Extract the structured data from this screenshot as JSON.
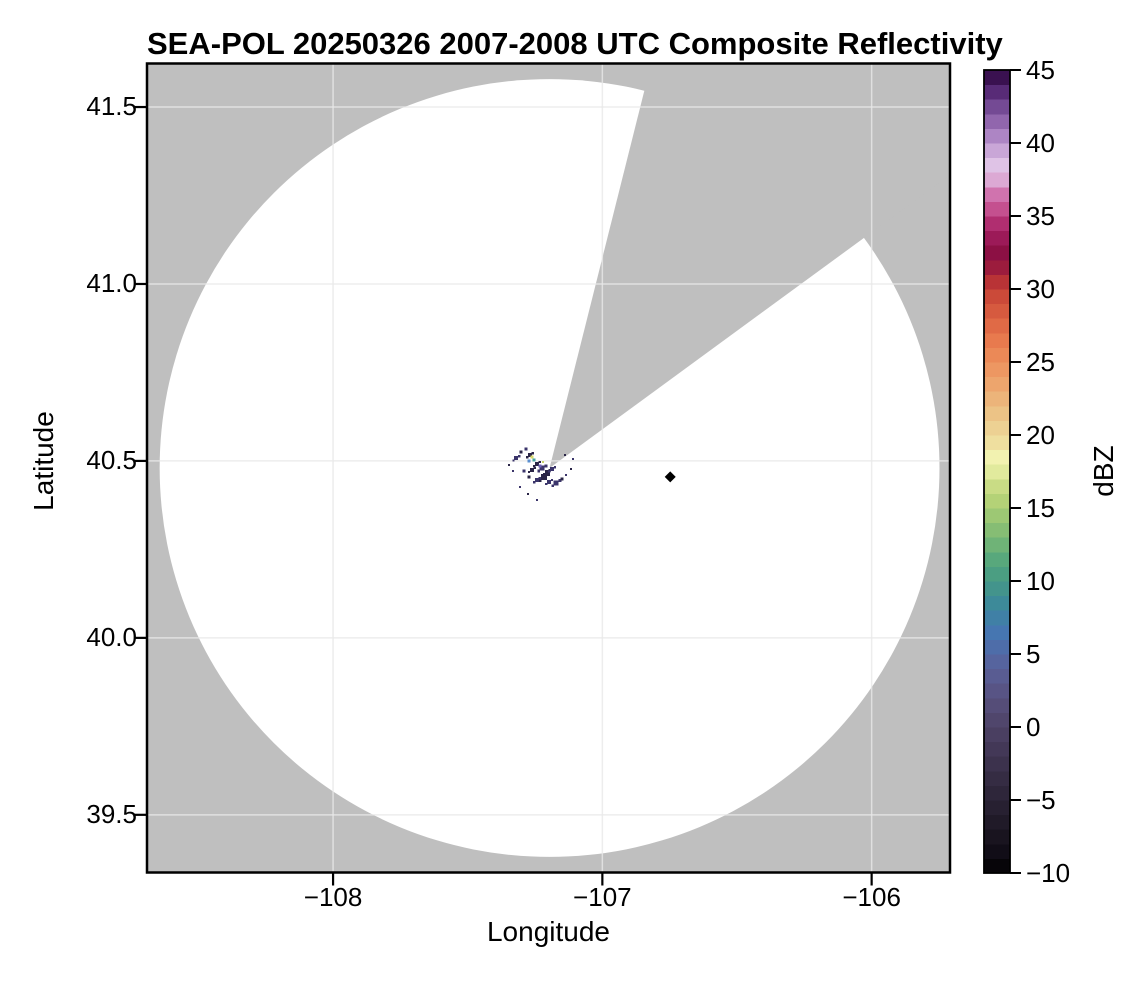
{
  "title": "SEA-POL 20250326 2007-2008 UTC Composite Reflectivity",
  "axes": {
    "xlabel": "Longitude",
    "ylabel": "Latitude",
    "xlim": [
      -108.691,
      -105.709
    ],
    "ylim": [
      39.337,
      41.623
    ],
    "xticks": [
      {
        "v": -108,
        "label": "−108"
      },
      {
        "v": -107,
        "label": "−107"
      },
      {
        "v": -106,
        "label": "−106"
      }
    ],
    "yticks": [
      {
        "v": 41.5,
        "label": "41.5"
      },
      {
        "v": 41.0,
        "label": "41.0"
      },
      {
        "v": 40.5,
        "label": "40.5"
      },
      {
        "v": 40.0,
        "label": "40.0"
      },
      {
        "v": 39.5,
        "label": "39.5"
      }
    ]
  },
  "colors": {
    "masked_gray": "#bfbfbf",
    "coverage_white": "#ffffff",
    "grid": "#e9e9e9",
    "frame": "#000000"
  },
  "colorbar": {
    "label": "dBZ",
    "vmin": -10,
    "vmax": 45,
    "step": 1,
    "ticks": [
      {
        "v": 45,
        "label": "45"
      },
      {
        "v": 40,
        "label": "40"
      },
      {
        "v": 35,
        "label": "35"
      },
      {
        "v": 30,
        "label": "30"
      },
      {
        "v": 25,
        "label": "25"
      },
      {
        "v": 20,
        "label": "20"
      },
      {
        "v": 15,
        "label": "15"
      },
      {
        "v": 10,
        "label": "10"
      },
      {
        "v": 5,
        "label": "5"
      },
      {
        "v": 0,
        "label": "0"
      },
      {
        "v": -5,
        "label": "−5"
      },
      {
        "v": -10,
        "label": "−10"
      }
    ],
    "band_colors": [
      "#070509",
      "#110d17",
      "#19141f",
      "#201a28",
      "#272031",
      "#2e263a",
      "#352c43",
      "#3c324d",
      "#433857",
      "#4a3f61",
      "#50466c",
      "#554d78",
      "#585485",
      "#595c92",
      "#56649e",
      "#4e6da9",
      "#4676b1",
      "#4080a6",
      "#3d8a99",
      "#43948c",
      "#4b9e82",
      "#58a87c",
      "#6fb377",
      "#86bd74",
      "#9dc874",
      "#b4d277",
      "#c9dc85",
      "#e1ea9d",
      "#f2f2b0",
      "#efdf9f",
      "#edd193",
      "#ecc386",
      "#ecb47a",
      "#eda56d",
      "#ed9762",
      "#eb8957",
      "#e87a4e",
      "#e06a46",
      "#d65a3f",
      "#cb4a39",
      "#b93336",
      "#9c1c3d",
      "#8c1044",
      "#9c1a58",
      "#b02e70",
      "#c4508f",
      "#d073ae",
      "#dca9d4",
      "#dfc3e6",
      "#c9a6d7",
      "#ad85c4",
      "#9166ad",
      "#744a94",
      "#582b77",
      "#3a1150"
    ]
  },
  "chart_data": {
    "type": "heatmap",
    "description": "Radar PPI composite reflectivity map: white circular coverage area over gray masked background, one gray blocked azimuth sector, sparse low-dBZ echoes near the radar site, and a black diamond site marker.",
    "radar_coverage": {
      "center_lon": -107.196,
      "center_lat": 40.48,
      "radius_deg_lon": 1.448,
      "radius_deg_lat": 1.099,
      "blocked_sector_azimuth_deg": [
        14.1,
        53.8
      ]
    },
    "site_marker": {
      "lon": -106.748,
      "lat": 40.455,
      "shape": "diamond",
      "color": "#000000",
      "size": 11
    },
    "echoes": [
      {
        "lon": -107.32,
        "lat": 40.508,
        "c": "#3b356b",
        "s": 4
      },
      {
        "lon": -107.302,
        "lat": 40.525,
        "c": "#2a2547",
        "s": 3
      },
      {
        "lon": -107.284,
        "lat": 40.534,
        "c": "#3b356b",
        "s": 3
      },
      {
        "lon": -107.269,
        "lat": 40.517,
        "c": "#2a2547",
        "s": 4
      },
      {
        "lon": -107.262,
        "lat": 40.511,
        "c": "#d9d968",
        "s": 3
      },
      {
        "lon": -107.254,
        "lat": 40.503,
        "c": "#4aa5a0",
        "s": 3
      },
      {
        "lon": -107.273,
        "lat": 40.5,
        "c": "#5a8fd0",
        "s": 3
      },
      {
        "lon": -107.243,
        "lat": 40.492,
        "c": "#2a2547",
        "s": 4
      },
      {
        "lon": -107.224,
        "lat": 40.48,
        "c": "#3b356b",
        "s": 5
      },
      {
        "lon": -107.206,
        "lat": 40.469,
        "c": "#2a2547",
        "s": 4
      },
      {
        "lon": -107.187,
        "lat": 40.477,
        "c": "#3b356b",
        "s": 4
      },
      {
        "lon": -107.217,
        "lat": 40.455,
        "c": "#2a2547",
        "s": 6
      },
      {
        "lon": -107.243,
        "lat": 40.446,
        "c": "#3b356b",
        "s": 4
      },
      {
        "lon": -107.273,
        "lat": 40.455,
        "c": "#2a2547",
        "s": 3
      },
      {
        "lon": -107.291,
        "lat": 40.472,
        "c": "#3b356b",
        "s": 3
      },
      {
        "lon": -107.262,
        "lat": 40.475,
        "c": "#2a2547",
        "s": 4
      },
      {
        "lon": -107.198,
        "lat": 40.441,
        "c": "#3b356b",
        "s": 4
      },
      {
        "lon": -107.172,
        "lat": 40.438,
        "c": "#3b356b",
        "s": 5
      },
      {
        "lon": -107.15,
        "lat": 40.449,
        "c": "#2a2547",
        "s": 3
      },
      {
        "lon": -107.135,
        "lat": 40.46,
        "c": "#3b356b",
        "s": 2
      },
      {
        "lon": -107.117,
        "lat": 40.477,
        "c": "#2a2547",
        "s": 2
      },
      {
        "lon": -107.306,
        "lat": 40.427,
        "c": "#3b356b",
        "s": 2
      },
      {
        "lon": -107.277,
        "lat": 40.407,
        "c": "#2a2547",
        "s": 2
      },
      {
        "lon": -107.243,
        "lat": 40.39,
        "c": "#3b356b",
        "s": 2
      },
      {
        "lon": -107.347,
        "lat": 40.489,
        "c": "#2a2547",
        "s": 2
      },
      {
        "lon": -107.332,
        "lat": 40.472,
        "c": "#3b356b",
        "s": 2
      },
      {
        "lon": -107.138,
        "lat": 40.517,
        "c": "#2a2547",
        "s": 2
      },
      {
        "lon": -107.109,
        "lat": 40.506,
        "c": "#3b356b",
        "s": 2
      },
      {
        "lon": -107.231,
        "lat": 40.486,
        "c": "#6f63b8",
        "s": 3
      },
      {
        "lon": -107.22,
        "lat": 40.497,
        "c": "#c9d36c",
        "s": 2
      }
    ]
  }
}
